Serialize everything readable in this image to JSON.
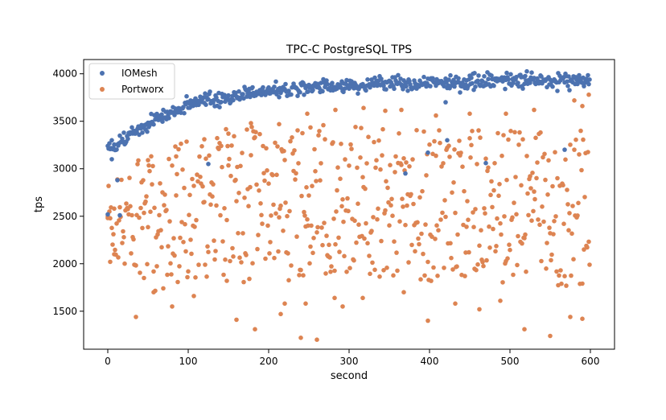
{
  "chart_data": {
    "type": "scatter",
    "title": "TPC-C PostgreSQL TPS",
    "xlabel": "second",
    "ylabel": "tps",
    "xlim": [
      -30,
      630
    ],
    "ylim": [
      1100,
      4150
    ],
    "xticks": [
      0,
      100,
      200,
      300,
      400,
      500,
      600
    ],
    "yticks": [
      1500,
      2000,
      2500,
      3000,
      3500,
      4000
    ],
    "grid": false,
    "legend_position": "top-left",
    "series": [
      {
        "name": "IOMesh",
        "color": "#4c72b0",
        "trend": [
          [
            0,
            3220
          ],
          [
            10,
            3250
          ],
          [
            20,
            3300
          ],
          [
            40,
            3420
          ],
          [
            60,
            3520
          ],
          [
            80,
            3600
          ],
          [
            100,
            3660
          ],
          [
            120,
            3710
          ],
          [
            150,
            3760
          ],
          [
            200,
            3820
          ],
          [
            250,
            3855
          ],
          [
            300,
            3880
          ],
          [
            350,
            3900
          ],
          [
            400,
            3910
          ],
          [
            450,
            3920
          ],
          [
            500,
            3925
          ],
          [
            550,
            3930
          ],
          [
            600,
            3935
          ]
        ],
        "outliers": [
          [
            0,
            2520
          ],
          [
            5,
            3100
          ],
          [
            12,
            2880
          ],
          [
            15,
            2510
          ],
          [
            125,
            3050
          ],
          [
            370,
            2950
          ],
          [
            398,
            3170
          ],
          [
            422,
            3300
          ],
          [
            420,
            3700
          ],
          [
            470,
            3060
          ],
          [
            568,
            3200
          ]
        ],
        "count": 600
      },
      {
        "name": "Portworx",
        "color": "#dd8452",
        "band": [
          [
            0,
            2000,
            2900
          ],
          [
            60,
            1700,
            3200
          ],
          [
            120,
            1800,
            3400
          ],
          [
            200,
            1800,
            3500
          ],
          [
            300,
            1900,
            3450
          ],
          [
            400,
            1800,
            3400
          ],
          [
            500,
            1800,
            3450
          ],
          [
            600,
            1750,
            3400
          ]
        ],
        "extremes": [
          [
            0,
            2500
          ],
          [
            3,
            2020
          ],
          [
            8,
            2100
          ],
          [
            35,
            1440
          ],
          [
            45,
            1850
          ],
          [
            57,
            1700
          ],
          [
            80,
            1550
          ],
          [
            107,
            1660
          ],
          [
            148,
            1820
          ],
          [
            160,
            1410
          ],
          [
            183,
            1310
          ],
          [
            215,
            1470
          ],
          [
            220,
            1580
          ],
          [
            240,
            1220
          ],
          [
            246,
            1580
          ],
          [
            252,
            2180
          ],
          [
            260,
            1200
          ],
          [
            282,
            1640
          ],
          [
            292,
            1550
          ],
          [
            317,
            1640
          ],
          [
            368,
            1700
          ],
          [
            398,
            1400
          ],
          [
            432,
            1580
          ],
          [
            462,
            1520
          ],
          [
            488,
            1610
          ],
          [
            518,
            1310
          ],
          [
            550,
            1240
          ],
          [
            575,
            1440
          ],
          [
            590,
            1420
          ],
          [
            598,
            3780
          ],
          [
            590,
            3660
          ],
          [
            580,
            3720
          ],
          [
            530,
            3620
          ],
          [
            495,
            3580
          ],
          [
            450,
            3580
          ],
          [
            408,
            3560
          ],
          [
            365,
            3620
          ],
          [
            345,
            3610
          ],
          [
            318,
            3640
          ],
          [
            283,
            3620
          ],
          [
            248,
            3580
          ],
          [
            213,
            3470
          ],
          [
            178,
            3480
          ],
          [
            150,
            3370
          ],
          [
            120,
            3310
          ],
          [
            85,
            3130
          ],
          [
            50,
            3090
          ]
        ],
        "count": 600
      }
    ]
  }
}
